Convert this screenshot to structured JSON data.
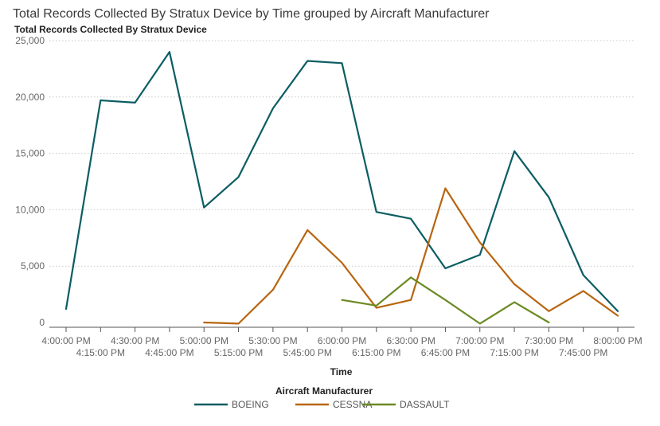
{
  "chart_data": {
    "type": "line",
    "title": "Total Records Collected By Stratux Device by Time grouped by Aircraft Manufacturer",
    "subtitle": "Total Records Collected By Stratux Device",
    "xlabel": "Time",
    "ylabel": "",
    "ylim": [
      0,
      25000
    ],
    "yticks": [
      0,
      5000,
      10000,
      15000,
      20000,
      25000
    ],
    "ytick_labels": [
      "0",
      "5,000",
      "10,000",
      "15,000",
      "20,000",
      "25,000"
    ],
    "categories": [
      "4:00:00 PM",
      "4:15:00 PM",
      "4:30:00 PM",
      "4:45:00 PM",
      "5:00:00 PM",
      "5:15:00 PM",
      "5:30:00 PM",
      "5:45:00 PM",
      "6:00:00 PM",
      "6:15:00 PM",
      "6:30:00 PM",
      "6:45:00 PM",
      "7:00:00 PM",
      "7:15:00 PM",
      "7:30:00 PM",
      "7:45:00 PM",
      "8:00:00 PM"
    ],
    "grid": true,
    "legend": {
      "title": "Aircraft Manufacturer",
      "placement": "bottom"
    },
    "series": [
      {
        "name": "BOEING",
        "color": "#0b5d63",
        "values": [
          1200,
          19700,
          19500,
          24000,
          10200,
          12900,
          19000,
          23200,
          23000,
          9800,
          9200,
          4800,
          6000,
          15200,
          11100,
          4200,
          1000
        ]
      },
      {
        "name": "CESSNA",
        "color": "#b8650f",
        "values": [
          null,
          null,
          null,
          null,
          0,
          -100,
          2900,
          8200,
          5300,
          1300,
          2000,
          11900,
          7100,
          3400,
          1000,
          2800,
          600
        ]
      },
      {
        "name": "DASSAULT",
        "color": "#6c8a22",
        "values": [
          null,
          null,
          null,
          null,
          null,
          null,
          null,
          null,
          2000,
          1500,
          4000,
          2000,
          -100,
          1800,
          0,
          null,
          null
        ]
      }
    ]
  }
}
